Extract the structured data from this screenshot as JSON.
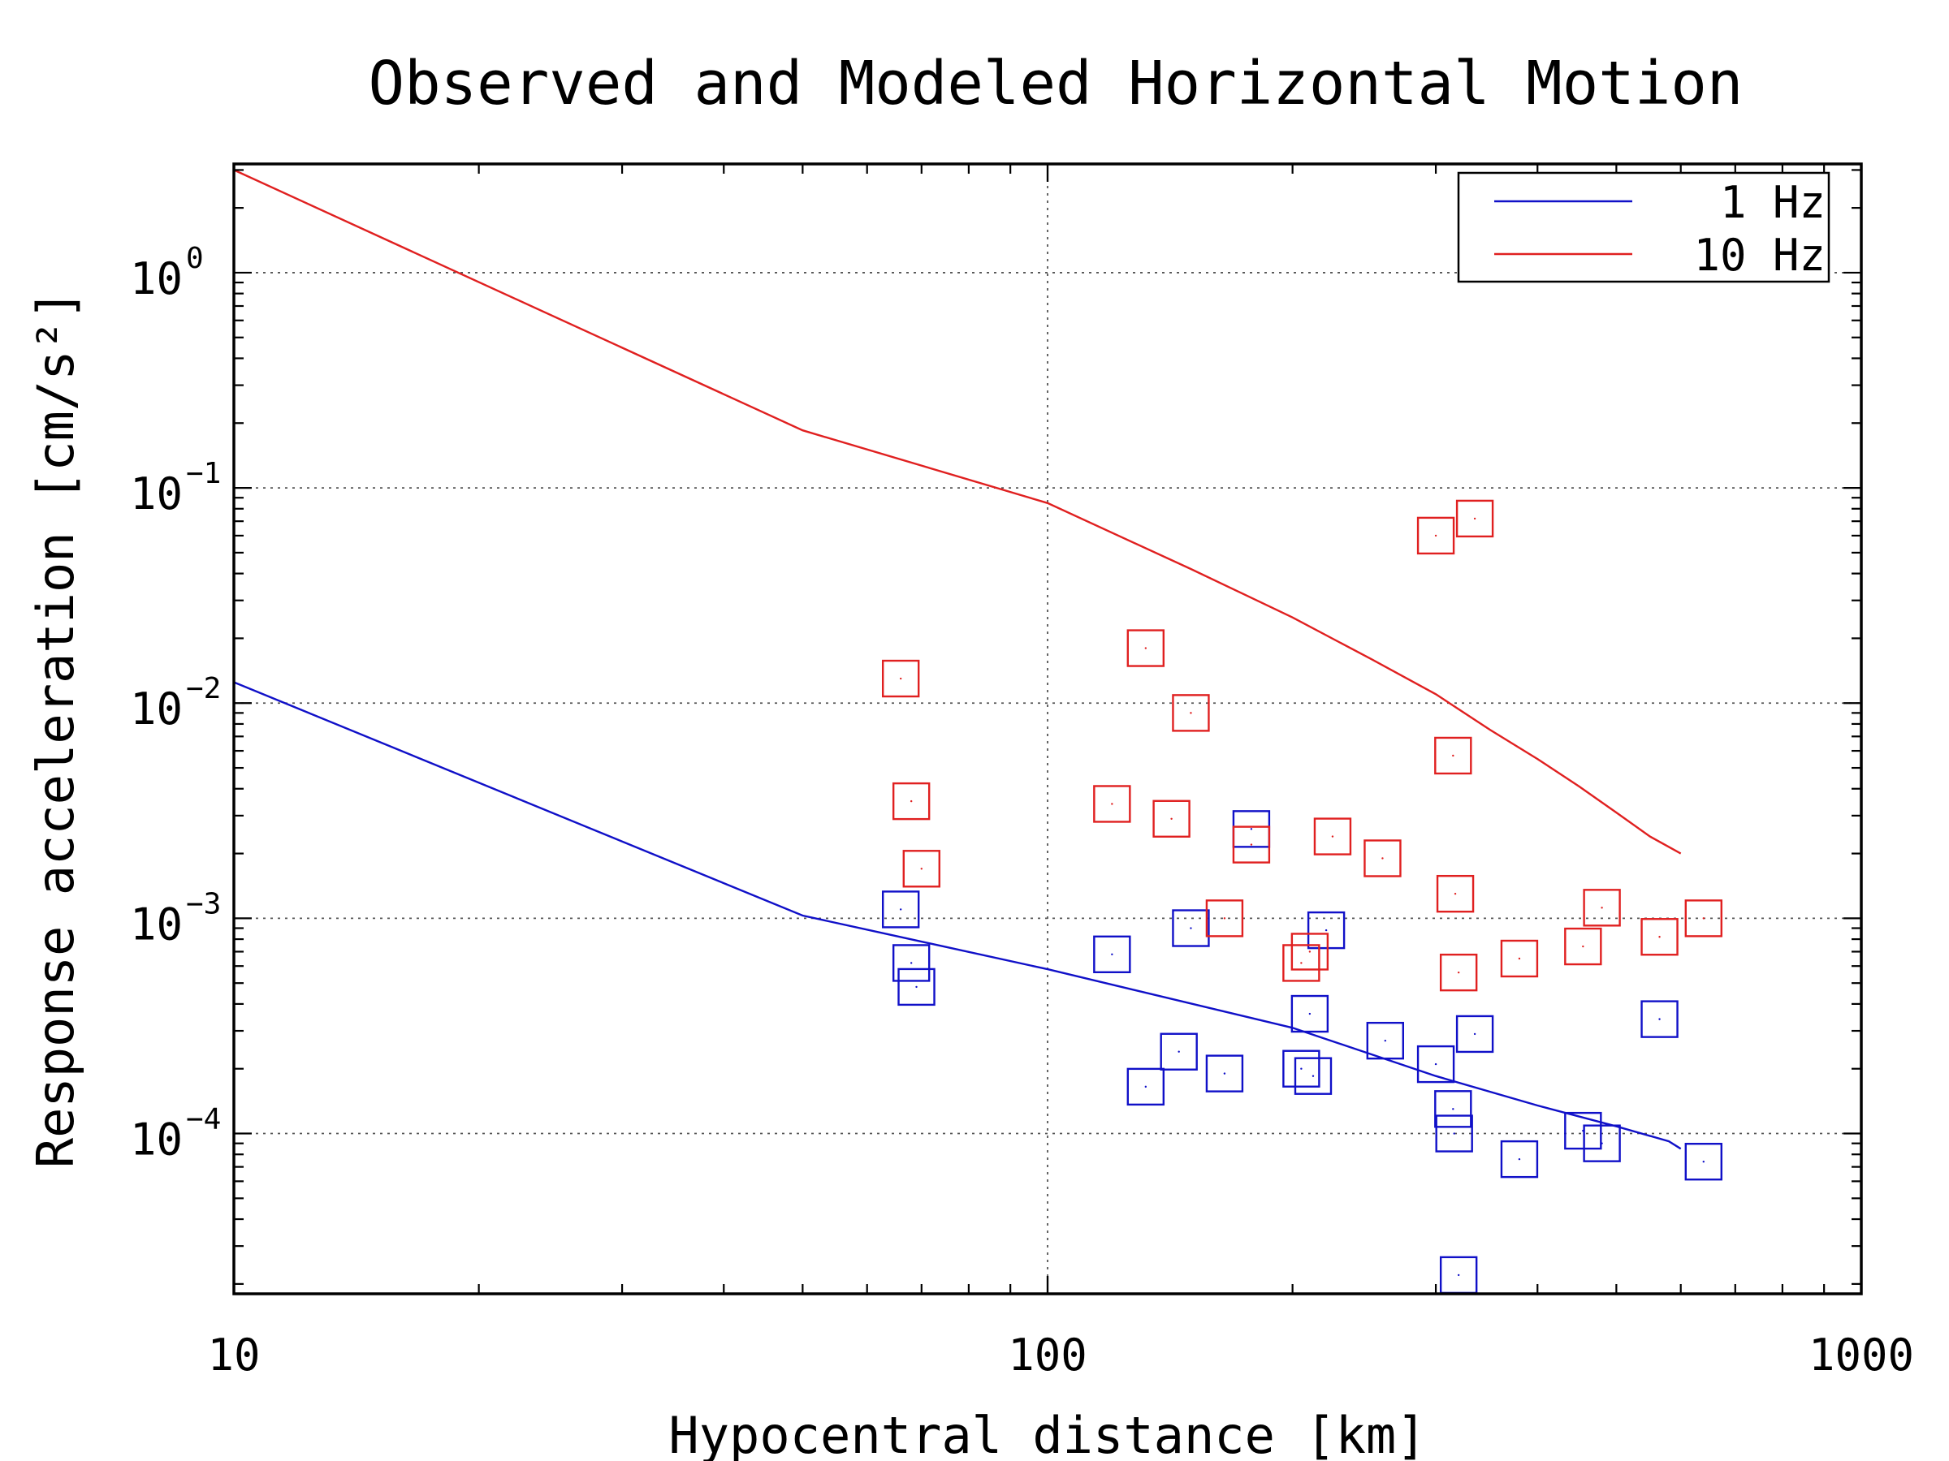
{
  "chart_data": {
    "type": "line",
    "title": "Observed and Modeled Horizontal Motion",
    "xlabel": "Hypocentral distance [km]",
    "ylabel": "Response acceleration [cm/s²]",
    "x_scale": "log",
    "y_scale": "log",
    "xlim": [
      10,
      1000
    ],
    "ylim": [
      1.8e-05,
      3.2
    ],
    "grid": true,
    "legend_position": "top-right",
    "x_ticks": [
      {
        "value": 10,
        "label": "10"
      },
      {
        "value": 100,
        "label": "100"
      },
      {
        "value": 1000,
        "label": "1000"
      }
    ],
    "y_ticks": [
      {
        "value": 1,
        "base": "10",
        "exp": "0"
      },
      {
        "value": 0.1,
        "base": "10",
        "exp": "−1"
      },
      {
        "value": 0.01,
        "base": "10",
        "exp": "−2"
      },
      {
        "value": 0.001,
        "base": "10",
        "exp": "−3"
      },
      {
        "value": 0.0001,
        "base": "10",
        "exp": "−4"
      }
    ],
    "series": [
      {
        "name": "1 Hz",
        "color": "#1010c8",
        "line": {
          "x": [
            10,
            50,
            100,
            200,
            300,
            400,
            500,
            580,
            600
          ],
          "y": [
            0.0125,
            0.00103,
            0.00058,
            0.00031,
            0.000185,
            0.000135,
            0.000108,
            9.2e-05,
            8.5e-05
          ]
        },
        "observed": {
          "x": [
            66,
            68,
            69,
            120,
            132,
            145,
            150,
            165,
            178,
            205,
            210,
            212,
            220,
            260,
            300,
            315,
            316,
            320,
            335,
            380,
            455,
            480,
            565,
            640
          ],
          "y": [
            0.0011,
            0.00062,
            0.00048,
            0.00068,
            0.000165,
            0.00024,
            0.0009,
            0.00019,
            0.0026,
            0.0002,
            0.00036,
            0.000185,
            0.00088,
            0.00027,
            0.00021,
            0.00013,
            0.0001,
            2.2e-05,
            0.00029,
            7.6e-05,
            0.000103,
            9e-05,
            0.00034,
            7.4e-05
          ]
        }
      },
      {
        "name": "10 Hz",
        "color": "#e02020",
        "line": {
          "x": [
            10,
            50,
            100,
            150,
            200,
            250,
            300,
            350,
            400,
            450,
            500,
            550,
            600
          ],
          "y": [
            3.0,
            0.185,
            0.085,
            0.042,
            0.025,
            0.016,
            0.011,
            0.0075,
            0.0055,
            0.0041,
            0.0031,
            0.0024,
            0.002
          ]
        },
        "observed": {
          "x": [
            66,
            68,
            70,
            120,
            132,
            142,
            150,
            165,
            178,
            205,
            210,
            224,
            258,
            300,
            315,
            317,
            320,
            335,
            380,
            455,
            480,
            565,
            640
          ],
          "y": [
            0.013,
            0.0035,
            0.0017,
            0.0034,
            0.018,
            0.0029,
            0.009,
            0.001,
            0.0022,
            0.00062,
            0.0007,
            0.0024,
            0.0019,
            0.06,
            0.0057,
            0.0013,
            0.00056,
            0.072,
            0.00065,
            0.00074,
            0.00112,
            0.00082,
            0.001
          ]
        }
      }
    ]
  }
}
